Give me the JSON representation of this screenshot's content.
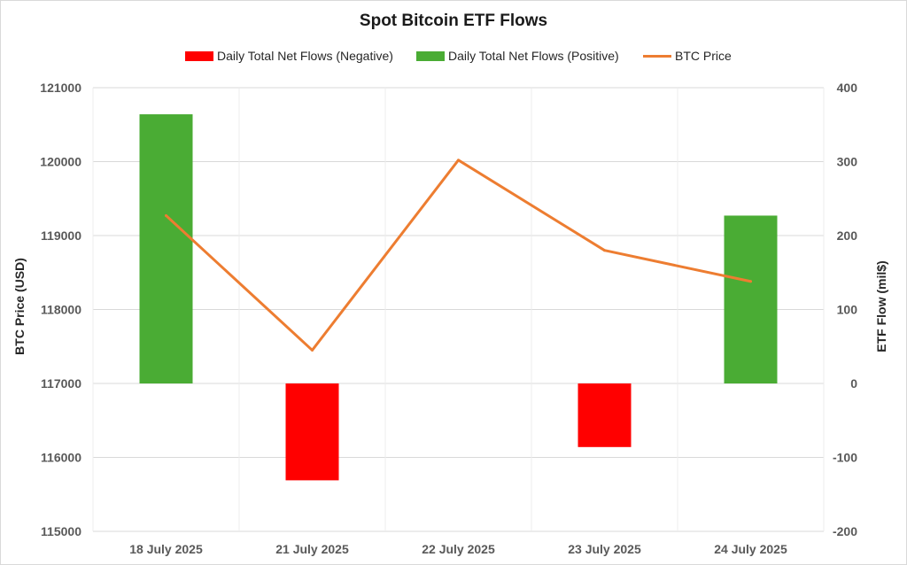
{
  "chart_data": {
    "type": "bar",
    "title": "Spot Bitcoin ETF Flows",
    "categories": [
      "18 July 2025",
      "21 July 2025",
      "22 July 2025",
      "23 July 2025",
      "24 July 2025"
    ],
    "series": [
      {
        "name": "Daily Total Net Flows (Negative)",
        "type": "bar",
        "axis": "right",
        "color": "#ff0000",
        "values": [
          null,
          -131,
          null,
          -68,
          null
        ]
      },
      {
        "name": "Daily Total Net Flows (Positive)",
        "type": "bar",
        "axis": "right",
        "color": "#4aac34",
        "values": [
          364,
          null,
          null,
          null,
          227
        ]
      },
      {
        "name": "BTC Price",
        "type": "line",
        "axis": "left",
        "color": "#ed7d31",
        "values": [
          119270,
          117450,
          120020,
          118800,
          118380
        ]
      }
    ],
    "extra_bars": [
      {
        "category": "23 July 2025",
        "value": -86,
        "color": "#ff0000"
      }
    ],
    "ylabel": "BTC Price (USD)",
    "y2label": "ETF Flow (mil$)",
    "ylim": [
      115000,
      121000
    ],
    "y2lim": [
      -200,
      400
    ],
    "yticks": [
      "115000",
      "116000",
      "117000",
      "118000",
      "119000",
      "120000",
      "121000"
    ],
    "y2ticks": [
      "-200",
      "-100",
      "0",
      "100",
      "200",
      "300",
      "400"
    ],
    "grid": true,
    "legend_position": "top"
  }
}
